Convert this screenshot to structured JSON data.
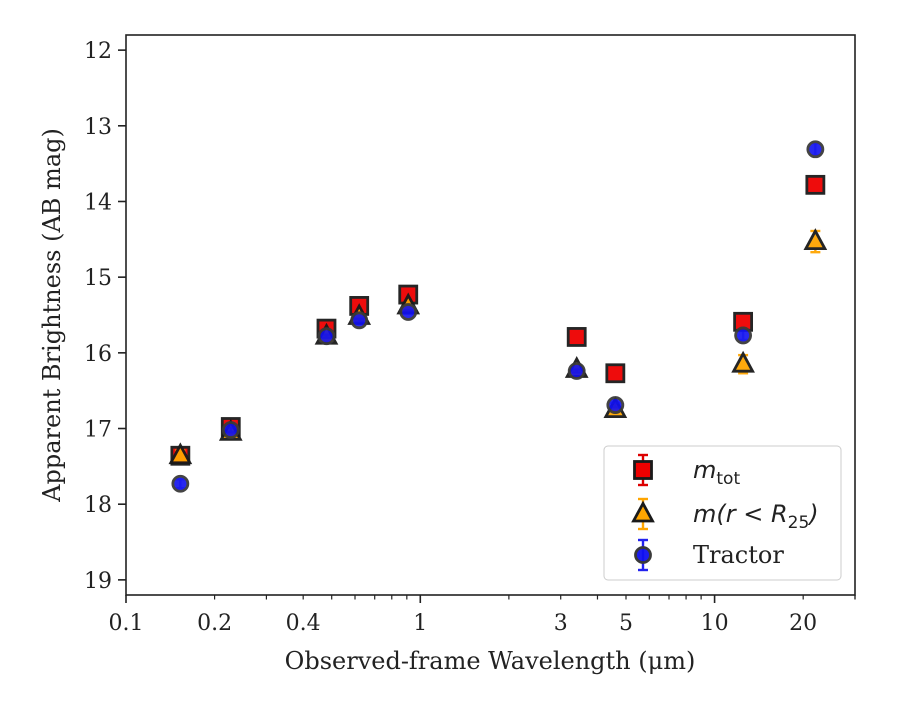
{
  "chart_data": {
    "type": "scatter",
    "xscale": "log",
    "yinverted": true,
    "xlim": [
      0.1,
      30
    ],
    "ylim": [
      19.2,
      11.8
    ],
    "xlabel": "Observed-frame Wavelength (μm)",
    "ylabel": "Apparent Brightness (AB mag)",
    "xticks": [
      {
        "value": 0.1,
        "label": "0.1"
      },
      {
        "value": 0.2,
        "label": "0.2"
      },
      {
        "value": 0.4,
        "label": "0.4"
      },
      {
        "value": 1,
        "label": "1"
      },
      {
        "value": 3,
        "label": "3"
      },
      {
        "value": 5,
        "label": "5"
      },
      {
        "value": 10,
        "label": "10"
      },
      {
        "value": 20,
        "label": "20"
      }
    ],
    "yticks": [
      {
        "value": 12,
        "label": "12"
      },
      {
        "value": 13,
        "label": "13"
      },
      {
        "value": 14,
        "label": "14"
      },
      {
        "value": 15,
        "label": "15"
      },
      {
        "value": 16,
        "label": "16"
      },
      {
        "value": 17,
        "label": "17"
      },
      {
        "value": 18,
        "label": "18"
      },
      {
        "value": 19,
        "label": "19"
      }
    ],
    "legend_position": "lower right",
    "series": [
      {
        "name": "m_tot",
        "marker": "square",
        "face": "#ee0000",
        "edge": "#1a1a1a",
        "errcolor": "#dd0000",
        "x": [
          0.153,
          0.227,
          0.48,
          0.62,
          0.91,
          3.4,
          4.6,
          12.5,
          22
        ],
        "y": [
          17.36,
          16.98,
          15.68,
          15.38,
          15.23,
          15.79,
          16.27,
          15.59,
          13.78
        ],
        "yerr": [
          0.07,
          0.04,
          0.02,
          0.02,
          0.02,
          0.02,
          0.02,
          0.04,
          0.05
        ]
      },
      {
        "name": "m(r<R25)",
        "marker": "triangle",
        "face": "#ffa500",
        "edge": "#1a1a1a",
        "errcolor": "#ffa500",
        "x": [
          0.153,
          0.227,
          0.48,
          0.62,
          0.91,
          3.4,
          4.6,
          12.5,
          22
        ],
        "y": [
          17.36,
          17.05,
          15.78,
          15.52,
          15.38,
          16.22,
          16.75,
          16.15,
          14.53
        ],
        "yerr": [
          0.07,
          0.04,
          0.02,
          0.02,
          0.02,
          0.03,
          0.03,
          0.12,
          0.14
        ]
      },
      {
        "name": "Tractor",
        "marker": "circle",
        "face": "#1010ee",
        "edge": "#3a3a3a",
        "errcolor": "#2222ee",
        "x": [
          0.153,
          0.227,
          0.48,
          0.62,
          0.91,
          3.4,
          4.6,
          12.5,
          22
        ],
        "y": [
          17.73,
          17.02,
          15.78,
          15.57,
          15.46,
          16.24,
          16.69,
          15.77,
          13.31
        ],
        "yerr": [
          0.06,
          0.03,
          0.02,
          0.02,
          0.02,
          0.02,
          0.03,
          0.06,
          0.08
        ]
      }
    ]
  },
  "legend": {
    "items": [
      {
        "key": "m_tot",
        "text_main": "m",
        "text_sub": "tot",
        "text_tail": ""
      },
      {
        "key": "m(r<R25)",
        "text_main": "m(r < R",
        "text_sub": "25",
        "text_tail": ")"
      },
      {
        "key": "Tractor",
        "text_main": "Tractor",
        "text_sub": "",
        "text_tail": ""
      }
    ]
  }
}
